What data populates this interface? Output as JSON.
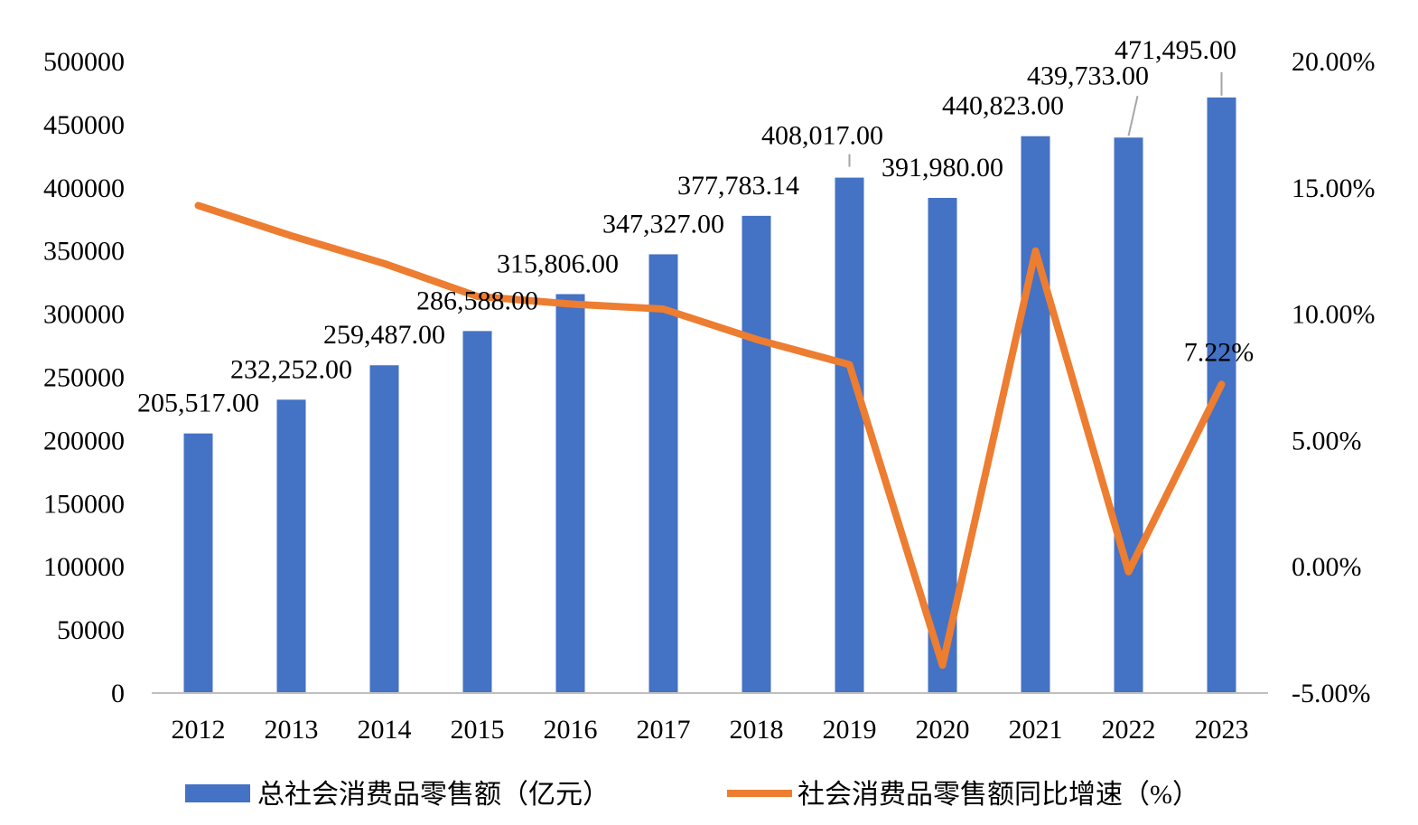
{
  "chart_data": {
    "type": "bar",
    "categories": [
      "2012",
      "2013",
      "2014",
      "2015",
      "2016",
      "2017",
      "2018",
      "2019",
      "2020",
      "2021",
      "2022",
      "2023"
    ],
    "series": [
      {
        "name": "总社会消费品零售额（亿元）",
        "type": "bar",
        "axis": "left",
        "color": "#4472C4",
        "values": [
          205517.0,
          232252.0,
          259487.0,
          286588.0,
          315806.0,
          347327.0,
          377783.14,
          408017.0,
          391980.0,
          440823.0,
          439733.0,
          471495.0
        ],
        "data_labels": [
          "205,517.00",
          "232,252.00",
          "259,487.00",
          "286,588.00",
          "315,806.00",
          "347,327.00",
          "377,783.14",
          "408,017.00",
          "391,980.00",
          "440,823.00",
          "439,733.00",
          "471,495.00"
        ]
      },
      {
        "name": "社会消费品零售额同比增速（%）",
        "type": "line",
        "axis": "right",
        "color": "#ED7D31",
        "values": [
          14.3,
          13.1,
          12.0,
          10.7,
          10.4,
          10.2,
          9.0,
          8.0,
          -3.9,
          12.5,
          -0.2,
          7.22
        ],
        "data_labels": [
          null,
          null,
          null,
          null,
          null,
          null,
          null,
          null,
          null,
          null,
          null,
          "7.22%"
        ]
      }
    ],
    "y_left": {
      "ylim": [
        0,
        500000
      ],
      "ticks": [
        0,
        50000,
        100000,
        150000,
        200000,
        250000,
        300000,
        350000,
        400000,
        450000,
        500000
      ],
      "tick_labels": [
        "0",
        "50000",
        "100000",
        "150000",
        "200000",
        "250000",
        "300000",
        "350000",
        "400000",
        "450000",
        "500000"
      ]
    },
    "y_right": {
      "ylim": [
        -5,
        20
      ],
      "ticks": [
        -5,
        0,
        5,
        10,
        15,
        20
      ],
      "tick_labels": [
        "-5.00%",
        "0.00%",
        "5.00%",
        "10.00%",
        "15.00%",
        "20.00%"
      ]
    },
    "grid": false,
    "legend": {
      "position": "bottom"
    }
  }
}
